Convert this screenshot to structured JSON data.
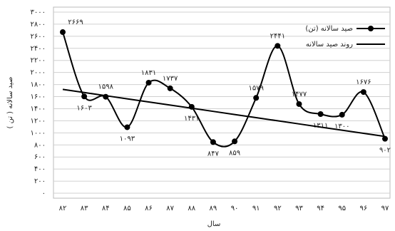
{
  "chart_data": {
    "type": "line",
    "y_label": "صید سالانه ( تن )",
    "x_label": "سال",
    "categories": [
      "۸۲",
      "۸۳",
      "۸۴",
      "۸۵",
      "۸۶",
      "۸۷",
      "۸۸",
      "۸۹",
      "۹۰",
      "۹۱",
      "۹۲",
      "۹۳",
      "۹۴",
      "۹۵",
      "۹۶",
      "۹۷"
    ],
    "series": [
      {
        "name": "صید سالانه (تن)",
        "color": "#000000",
        "markers": true,
        "values": [
          2669,
          1603,
          1598,
          1093,
          1831,
          1737,
          1431,
          847,
          859,
          1579,
          2441,
          1477,
          1311,
          1300,
          1676,
          902
        ],
        "value_labels": [
          "۲۶۶۹",
          "۱۶۰۳",
          "۱۵۹۸",
          "۱۰۹۳",
          "۱۸۳۱",
          "۱۷۳۷",
          "۱۴۳۱",
          "۸۴۷",
          "۸۵۹",
          "۱۵۷۹",
          "۲۴۴۱",
          "۱۴۷۷",
          "۱۳۱۱",
          "۱۳۰۰",
          "۱۶۷۶",
          "۹۰۲"
        ]
      },
      {
        "name": "روند صید سالانه",
        "color": "#000000",
        "markers": false,
        "values": [
          1720,
          1668,
          1616,
          1564,
          1512,
          1460,
          1408,
          1356,
          1304,
          1252,
          1200,
          1148,
          1096,
          1044,
          992,
          940
        ]
      }
    ],
    "ylim": [
      0,
      3000
    ],
    "yticks": [
      {
        "value": 0,
        "label": "۰"
      },
      {
        "value": 200,
        "label": "۲۰۰"
      },
      {
        "value": 400,
        "label": "۴۰۰"
      },
      {
        "value": 600,
        "label": "۶۰۰"
      },
      {
        "value": 800,
        "label": "۸۰۰"
      },
      {
        "value": 1000,
        "label": "۱۰۰۰"
      },
      {
        "value": 1200,
        "label": "۱۲۰۰"
      },
      {
        "value": 1400,
        "label": "۱۴۰۰"
      },
      {
        "value": 1600,
        "label": "۱۶۰۰"
      },
      {
        "value": 1800,
        "label": "۱۸۰۰"
      },
      {
        "value": 2000,
        "label": "۲۰۰۰"
      },
      {
        "value": 2200,
        "label": "۲۲۰۰"
      },
      {
        "value": 2400,
        "label": "۲۴۰۰"
      },
      {
        "value": 2600,
        "label": "۲۶۰۰"
      },
      {
        "value": 2800,
        "label": "۲۸۰۰"
      },
      {
        "value": 3000,
        "label": "۳۰۰۰"
      }
    ],
    "grid": true,
    "legend": "top-right"
  }
}
